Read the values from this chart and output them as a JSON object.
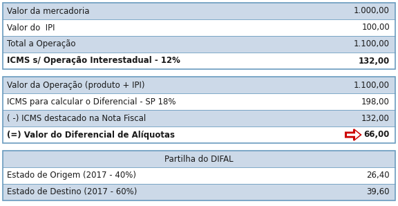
{
  "rows_section1": [
    {
      "label": "Valor da mercadoria",
      "value": "1.000,00",
      "bold": false,
      "bg": "#ccd9e8"
    },
    {
      "label": "Valor do  IPI",
      "value": "100,00",
      "bold": false,
      "bg": "#ffffff"
    },
    {
      "label": "Total a Operação",
      "value": "1.100,00",
      "bold": false,
      "bg": "#ccd9e8"
    },
    {
      "label": "ICMS s/ Operação Interestadual - 12%",
      "value": "132,00",
      "bold": true,
      "bg": "#ffffff"
    }
  ],
  "rows_section2": [
    {
      "label": "Valor da Operação (produto + IPI)",
      "value": "1.100,00",
      "bold": false,
      "bg": "#ccd9e8"
    },
    {
      "label": "ICMS para calcular o Diferencial - SP 18%",
      "value": "198,00",
      "bold": false,
      "bg": "#ffffff"
    },
    {
      "label": "( -) ICMS destacado na Nota Fiscal",
      "value": "132,00",
      "bold": false,
      "bg": "#ccd9e8"
    },
    {
      "label": "(=) Valor do Diferencial de Alíquotas",
      "value": "66,00",
      "bold": true,
      "bg": "#ffffff",
      "arrow": true
    }
  ],
  "rows_section3": [
    {
      "label": "Partilha do DIFAL",
      "value": "",
      "bold": false,
      "bg": "#ccd9e8",
      "center": true
    },
    {
      "label": "Estado de Origem (2017 - 40%)",
      "value": "26,40",
      "bold": false,
      "bg": "#ffffff"
    },
    {
      "label": "Estado de Destino (2017 - 60%)",
      "value": "39,60",
      "bold": false,
      "bg": "#ccd9e8"
    }
  ],
  "border_color": "#6a9bbf",
  "text_color": "#1a1a1a",
  "arrow_color": "#cc0000",
  "font_size": 8.5
}
